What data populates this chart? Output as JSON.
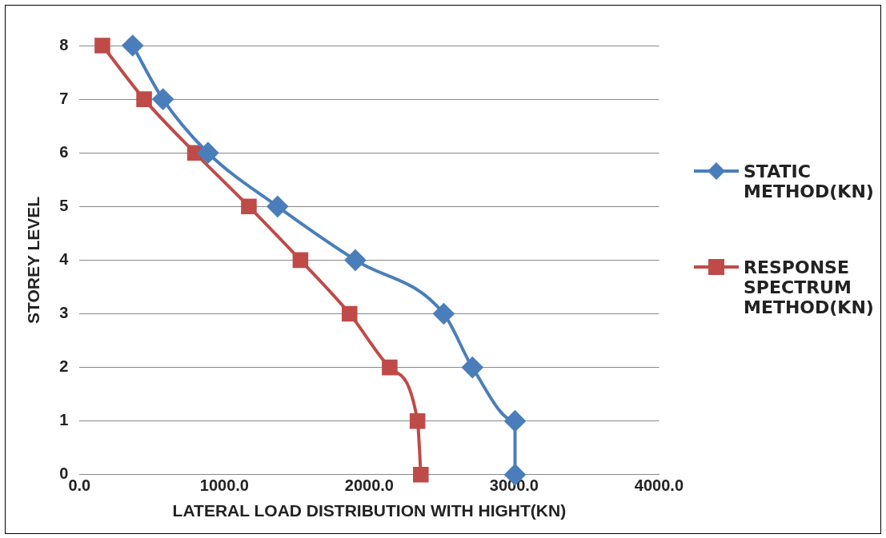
{
  "chart_data": {
    "type": "line",
    "xlabel": "LATERAL LOAD DISTRIBUTION WITH HIGHT(KN)",
    "ylabel": "STOREY LEVEL",
    "series": [
      {
        "name": "STATIC METHOD(KN)",
        "color": "#4a7ebb",
        "marker": "diamond",
        "x": [
          3006,
          3006,
          2712,
          2514,
          1904,
          1367,
          887,
          576,
          367
        ],
        "values": [
          0,
          1,
          2,
          3,
          4,
          5,
          6,
          7,
          8
        ]
      },
      {
        "name": "RESPONSE SPECTRUM METHOD(KN)",
        "color": "#be4b48",
        "marker": "square",
        "x": [
          2356,
          2333,
          2141,
          1864,
          1525,
          1169,
          797,
          446,
          158
        ],
        "values": [
          0,
          1,
          2,
          3,
          4,
          5,
          6,
          7,
          8
        ]
      }
    ],
    "xlim": [
      0,
      4000
    ],
    "xticks": [
      {
        "value": 0,
        "label": "0.0"
      },
      {
        "value": 1000,
        "label": "1000.0"
      },
      {
        "value": 2000,
        "label": "2000.0"
      },
      {
        "value": 3000,
        "label": "3000.0"
      },
      {
        "value": 4000,
        "label": "4000.0"
      }
    ],
    "ylim": [
      0,
      8
    ],
    "yticks": [
      0,
      1,
      2,
      3,
      4,
      5,
      6,
      7,
      8
    ],
    "grid": "y",
    "legend": "right"
  }
}
